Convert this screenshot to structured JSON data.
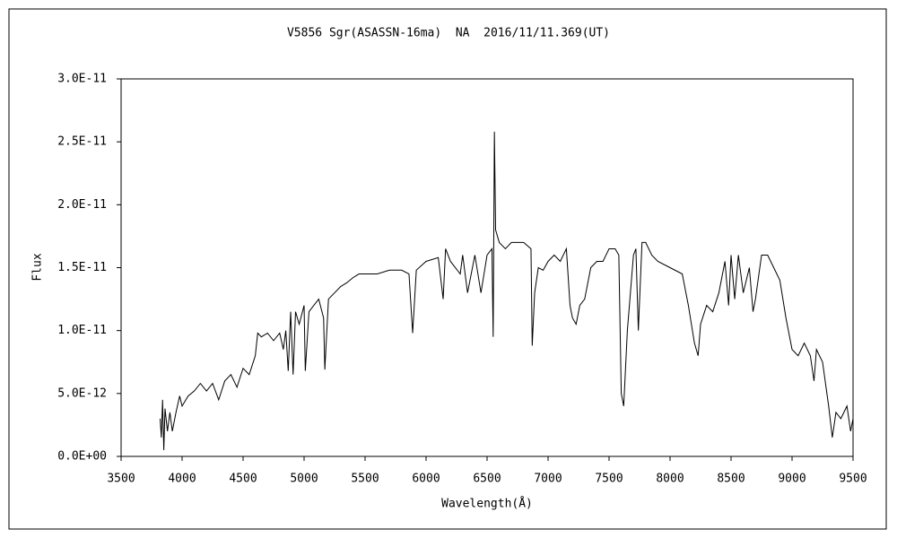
{
  "chart_data": {
    "type": "line",
    "title": "V5856 Sgr(ASASSN-16ma)  NA  2016/11/11.369(UT)",
    "xlabel": "Wavelength(Å)",
    "ylabel": "Flux",
    "color": "#000000",
    "xlim": [
      3500,
      9500
    ],
    "xticks": [
      3500,
      4000,
      4500,
      5000,
      5500,
      6000,
      6500,
      7000,
      7500,
      8000,
      8500,
      9000,
      9500
    ],
    "ylim": [
      0,
      3e-11
    ],
    "yticks": [
      {
        "value": 0,
        "label": "0.0E+00"
      },
      {
        "value": 5e-12,
        "label": "5.0E-12"
      },
      {
        "value": 1e-11,
        "label": "1.0E-11"
      },
      {
        "value": 1.5e-11,
        "label": "1.5E-11"
      },
      {
        "value": 2e-11,
        "label": "2.0E-11"
      },
      {
        "value": 2.5e-11,
        "label": "2.5E-11"
      },
      {
        "value": 3e-11,
        "label": "3.0E-11"
      }
    ],
    "x": [
      3820,
      3830,
      3840,
      3850,
      3860,
      3880,
      3900,
      3920,
      3950,
      3980,
      4000,
      4050,
      4100,
      4150,
      4200,
      4250,
      4300,
      4350,
      4400,
      4450,
      4500,
      4550,
      4600,
      4620,
      4650,
      4700,
      4750,
      4800,
      4830,
      4850,
      4870,
      4890,
      4910,
      4930,
      4960,
      5000,
      5010,
      5040,
      5080,
      5120,
      5160,
      5170,
      5200,
      5250,
      5300,
      5350,
      5400,
      5450,
      5500,
      5600,
      5700,
      5800,
      5860,
      5890,
      5920,
      6000,
      6100,
      6140,
      6160,
      6200,
      6280,
      6300,
      6340,
      6400,
      6450,
      6500,
      6540,
      6550,
      6560,
      6570,
      6600,
      6650,
      6700,
      6800,
      6860,
      6870,
      6890,
      6920,
      6960,
      7000,
      7050,
      7100,
      7150,
      7180,
      7200,
      7230,
      7260,
      7300,
      7350,
      7400,
      7450,
      7500,
      7550,
      7580,
      7600,
      7620,
      7650,
      7700,
      7720,
      7740,
      7770,
      7800,
      7850,
      7900,
      8000,
      8100,
      8150,
      8200,
      8230,
      8250,
      8300,
      8350,
      8400,
      8450,
      8480,
      8500,
      8530,
      8560,
      8600,
      8650,
      8680,
      8700,
      8750,
      8800,
      8850,
      8900,
      8950,
      9000,
      9050,
      9100,
      9150,
      9180,
      9200,
      9250,
      9300,
      9330,
      9360,
      9400,
      9450,
      9480,
      9500
    ],
    "values": [
      3e-12,
      1.5e-12,
      4.5e-12,
      5e-13,
      3.8e-12,
      2e-12,
      3.5e-12,
      2e-12,
      3.5e-12,
      4.8e-12,
      4e-12,
      4.8e-12,
      5.2e-12,
      5.8e-12,
      5.2e-12,
      5.8e-12,
      4.5e-12,
      6e-12,
      6.5e-12,
      5.5e-12,
      7e-12,
      6.5e-12,
      8e-12,
      9.8e-12,
      9.5e-12,
      9.8e-12,
      9.2e-12,
      9.8e-12,
      8.5e-12,
      1e-11,
      6.8e-12,
      1.15e-11,
      6.5e-12,
      1.15e-11,
      1.05e-11,
      1.2e-11,
      6.8e-12,
      1.15e-11,
      1.2e-11,
      1.25e-11,
      1.1e-11,
      6.9e-12,
      1.25e-11,
      1.3e-11,
      1.35e-11,
      1.38e-11,
      1.42e-11,
      1.45e-11,
      1.45e-11,
      1.45e-11,
      1.48e-11,
      1.48e-11,
      1.45e-11,
      9.8e-12,
      1.48e-11,
      1.55e-11,
      1.58e-11,
      1.25e-11,
      1.65e-11,
      1.55e-11,
      1.45e-11,
      1.6e-11,
      1.3e-11,
      1.6e-11,
      1.3e-11,
      1.6e-11,
      1.65e-11,
      9.5e-12,
      2.58e-11,
      1.8e-11,
      1.7e-11,
      1.65e-11,
      1.7e-11,
      1.7e-11,
      1.65e-11,
      8.8e-12,
      1.3e-11,
      1.5e-11,
      1.48e-11,
      1.55e-11,
      1.6e-11,
      1.55e-11,
      1.65e-11,
      1.2e-11,
      1.1e-11,
      1.05e-11,
      1.2e-11,
      1.25e-11,
      1.5e-11,
      1.55e-11,
      1.55e-11,
      1.65e-11,
      1.65e-11,
      1.6e-11,
      5e-12,
      4e-12,
      1e-11,
      1.6e-11,
      1.65e-11,
      1e-11,
      1.7e-11,
      1.7e-11,
      1.6e-11,
      1.55e-11,
      1.5e-11,
      1.45e-11,
      1.2e-11,
      9e-12,
      8e-12,
      1.05e-11,
      1.2e-11,
      1.15e-11,
      1.3e-11,
      1.55e-11,
      1.2e-11,
      1.6e-11,
      1.25e-11,
      1.6e-11,
      1.3e-11,
      1.5e-11,
      1.15e-11,
      1.25e-11,
      1.6e-11,
      1.6e-11,
      1.5e-11,
      1.4e-11,
      1.1e-11,
      8.5e-12,
      8e-12,
      9e-12,
      8e-12,
      6e-12,
      8.5e-12,
      7.5e-12,
      4e-12,
      1.5e-12,
      3.5e-12,
      3e-12,
      4e-12,
      2e-12,
      3e-12
    ]
  }
}
